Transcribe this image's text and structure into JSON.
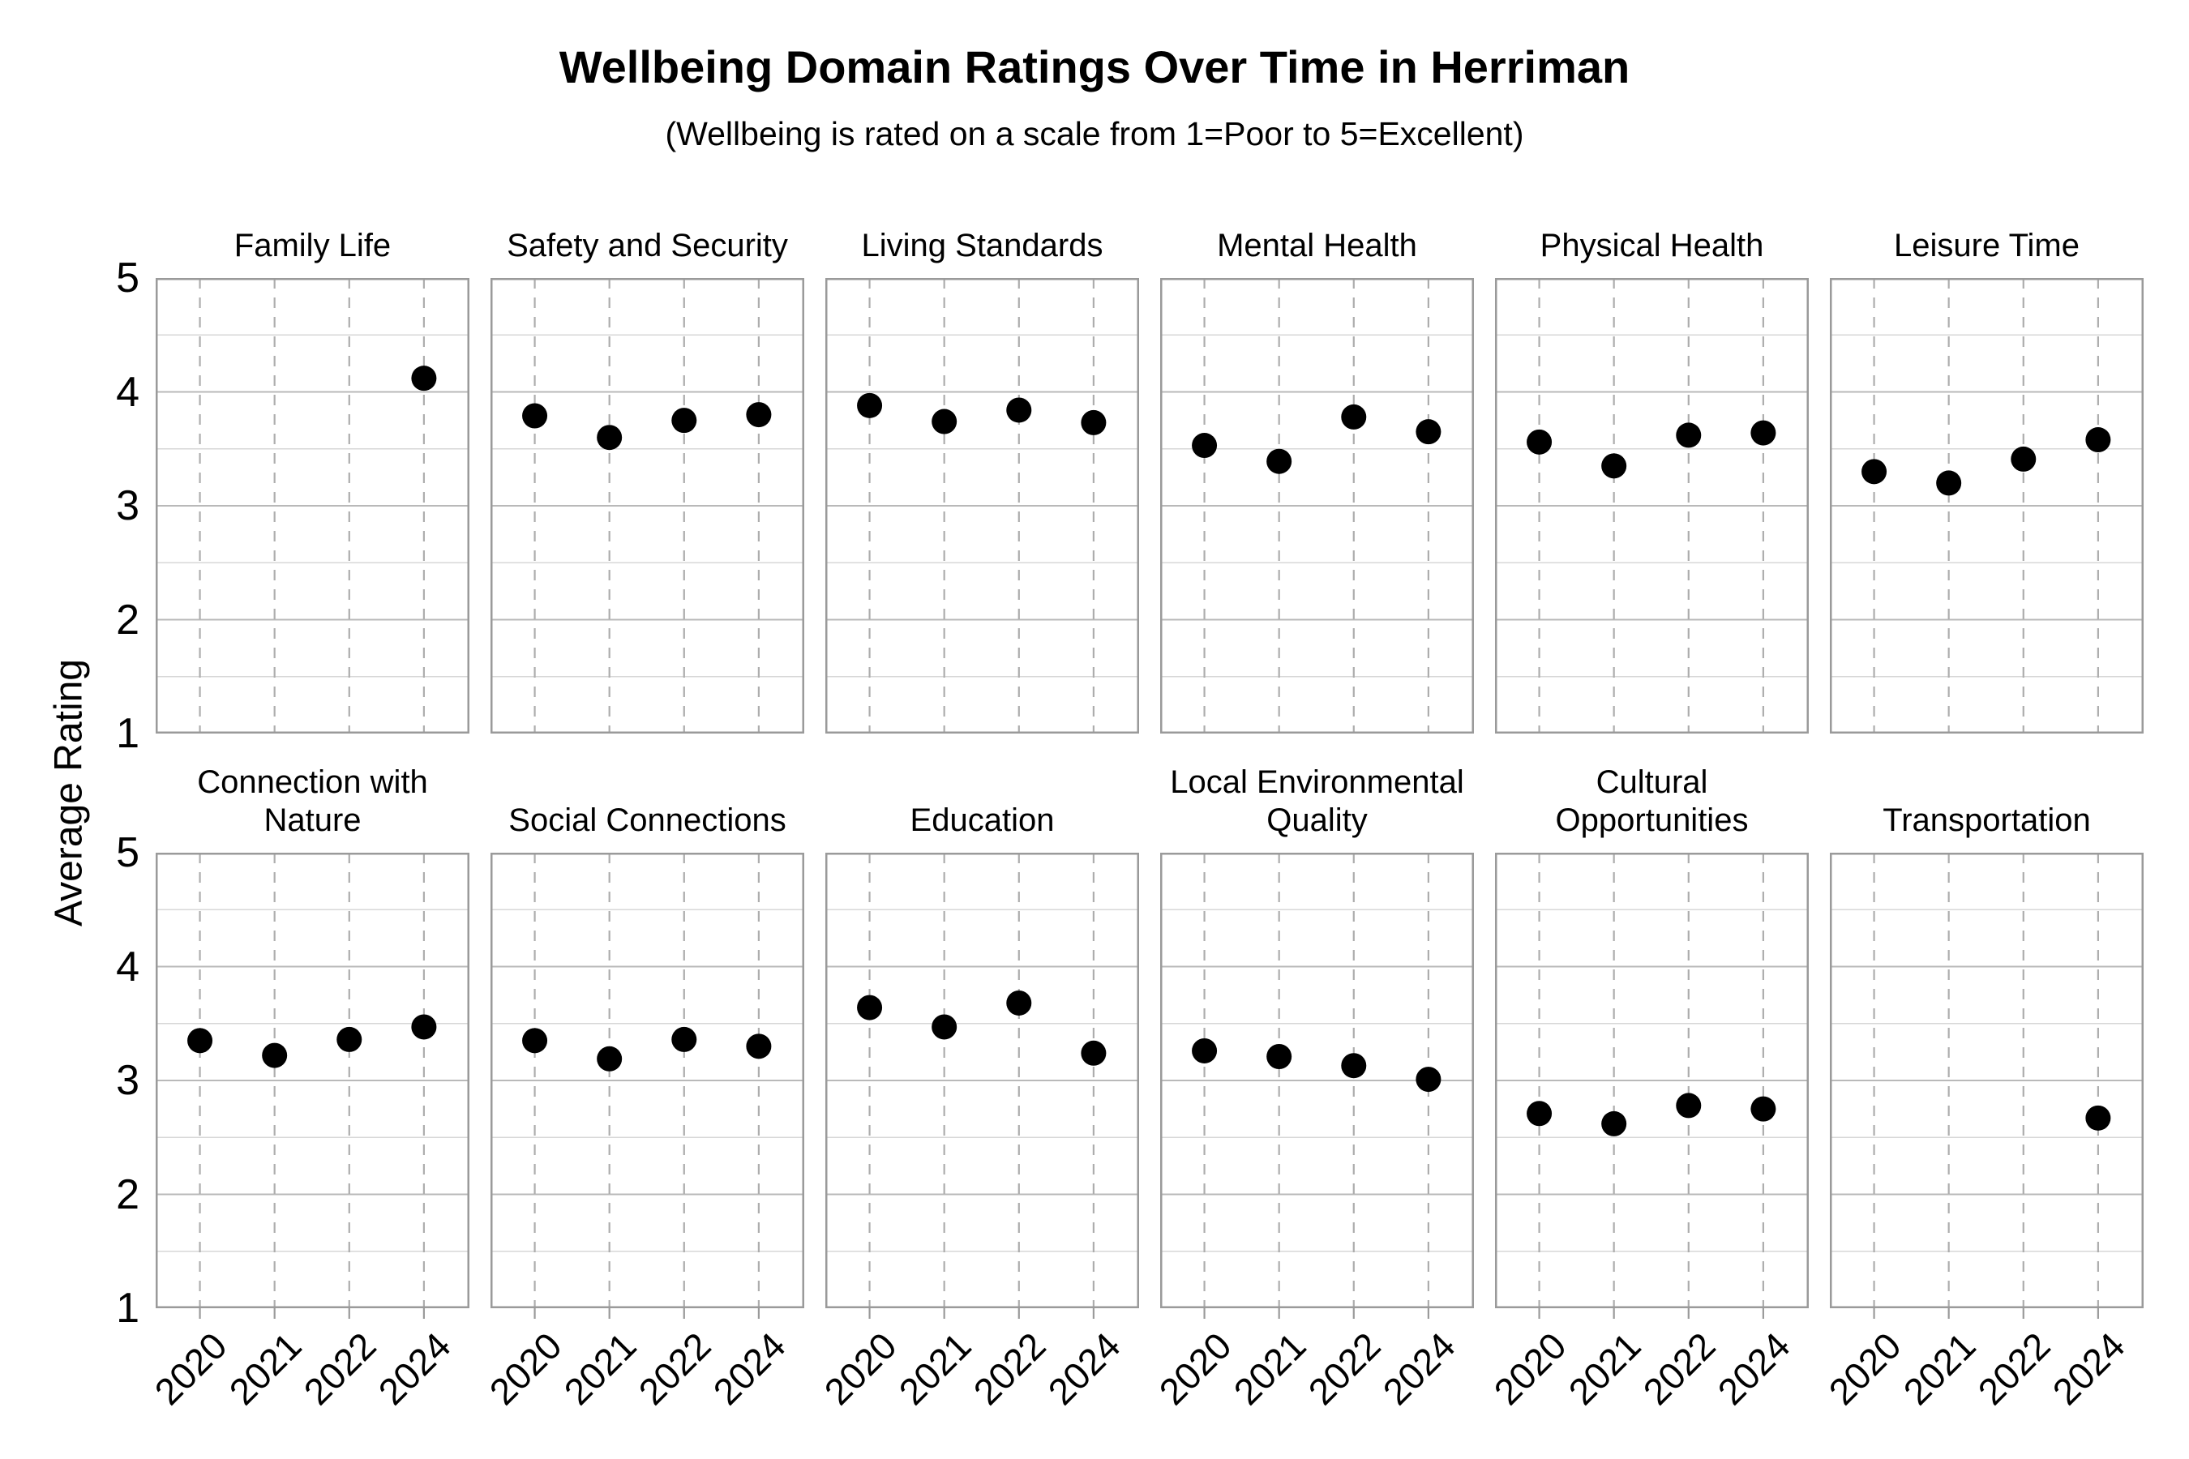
{
  "chart_data": {
    "type": "scatter",
    "title": "Wellbeing Domain Ratings Over Time in Herriman",
    "subtitle": "(Wellbeing is rated on a scale from 1=Poor to 5=Excellent)",
    "ylabel": "Average Rating",
    "xlabel": "",
    "ylim": [
      1,
      5
    ],
    "yticks": [
      5,
      4,
      3,
      2,
      1
    ],
    "y_minor_gridlines": [
      4.5,
      3.5,
      2.5,
      1.5
    ],
    "y_major_gridlines": [
      4,
      3,
      2
    ],
    "x_categories": [
      "2020",
      "2021",
      "2022",
      "2024"
    ],
    "legend": "none",
    "grid": "horizontal solid lines every 0.5; vertical dashed lines at each year",
    "layout": {
      "rows": 2,
      "cols": 6
    },
    "facets": [
      {
        "title_lines": [
          "Family Life"
        ],
        "values": [
          null,
          null,
          null,
          4.12
        ]
      },
      {
        "title_lines": [
          "Safety and Security"
        ],
        "values": [
          3.79,
          3.6,
          3.75,
          3.8
        ]
      },
      {
        "title_lines": [
          "Living Standards"
        ],
        "values": [
          3.88,
          3.74,
          3.84,
          3.73
        ]
      },
      {
        "title_lines": [
          "Mental Health"
        ],
        "values": [
          3.53,
          3.39,
          3.78,
          3.65
        ]
      },
      {
        "title_lines": [
          "Physical Health"
        ],
        "values": [
          3.56,
          3.35,
          3.62,
          3.64
        ]
      },
      {
        "title_lines": [
          "Leisure Time"
        ],
        "values": [
          3.3,
          3.2,
          3.41,
          3.58
        ]
      },
      {
        "title_lines": [
          "Connection with",
          "Nature"
        ],
        "values": [
          3.35,
          3.22,
          3.36,
          3.47
        ]
      },
      {
        "title_lines": [
          "Social Connections"
        ],
        "values": [
          3.35,
          3.19,
          3.36,
          3.3
        ]
      },
      {
        "title_lines": [
          "Education"
        ],
        "values": [
          3.64,
          3.47,
          3.68,
          3.24
        ]
      },
      {
        "title_lines": [
          "Local Environmental",
          "Quality"
        ],
        "values": [
          3.26,
          3.21,
          3.13,
          3.01
        ]
      },
      {
        "title_lines": [
          "Cultural",
          "Opportunities"
        ],
        "values": [
          2.71,
          2.62,
          2.78,
          2.75
        ]
      },
      {
        "title_lines": [
          "Transportation"
        ],
        "values": [
          null,
          null,
          null,
          2.67
        ]
      }
    ],
    "colors": {
      "point": "#000000",
      "grid_minor": "#d7d7d7",
      "grid_major": "#b9b9b9",
      "grid_dashed": "#adadad",
      "frame": "#9a9a9a",
      "text": "#000000",
      "background": "#ffffff"
    }
  }
}
